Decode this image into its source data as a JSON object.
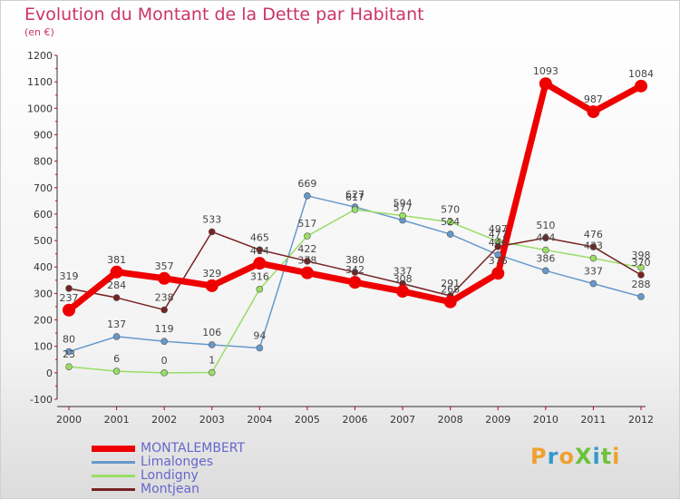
{
  "header": {
    "title": "Evolution du Montant de la Dette par Habitant",
    "subtitle": "(en €)"
  },
  "logo": {
    "text": "ProXiti",
    "colors": [
      "#f0a030",
      "#3399cc",
      "#f0a030",
      "#6cc23a",
      "#3399cc",
      "#6cc23a",
      "#f0a030"
    ]
  },
  "chart_data": {
    "type": "line",
    "title": "Evolution du Montant de la Dette par Habitant",
    "subtitle": "(en €)",
    "xlabel": "",
    "ylabel": "",
    "x": [
      "2000",
      "2001",
      "2002",
      "2003",
      "2004",
      "2005",
      "2006",
      "2007",
      "2008",
      "2009",
      "2010",
      "2011",
      "2012"
    ],
    "ylim": [
      -100,
      1200
    ],
    "yticks": [
      -100,
      0,
      100,
      200,
      300,
      400,
      500,
      600,
      700,
      800,
      900,
      1000,
      1100,
      1200
    ],
    "grid": false,
    "legend_position": "bottom-left",
    "series": [
      {
        "name": "MONTALEMBERT",
        "color": "#ee0000",
        "width": 7,
        "marker": 7,
        "values": [
          237,
          381,
          357,
          329,
          414,
          378,
          342,
          308,
          268,
          376,
          1093,
          987,
          1084
        ]
      },
      {
        "name": "Limalonges",
        "color": "#6699cc",
        "width": 1.5,
        "marker": 3.5,
        "values": [
          80,
          137,
          119,
          106,
          94,
          669,
          627,
          577,
          524,
          446,
          386,
          337,
          288
        ]
      },
      {
        "name": "Londigny",
        "color": "#99dd66",
        "width": 1.5,
        "marker": 3.5,
        "values": [
          23,
          6,
          0,
          1,
          316,
          517,
          617,
          594,
          570,
          497,
          464,
          433,
          398
        ]
      },
      {
        "name": "Montjean",
        "color": "#772222",
        "width": 1.5,
        "marker": 3.5,
        "values": [
          319,
          284,
          238,
          533,
          465,
          422,
          380,
          337,
          291,
          477,
          510,
          476,
          370
        ]
      }
    ]
  }
}
